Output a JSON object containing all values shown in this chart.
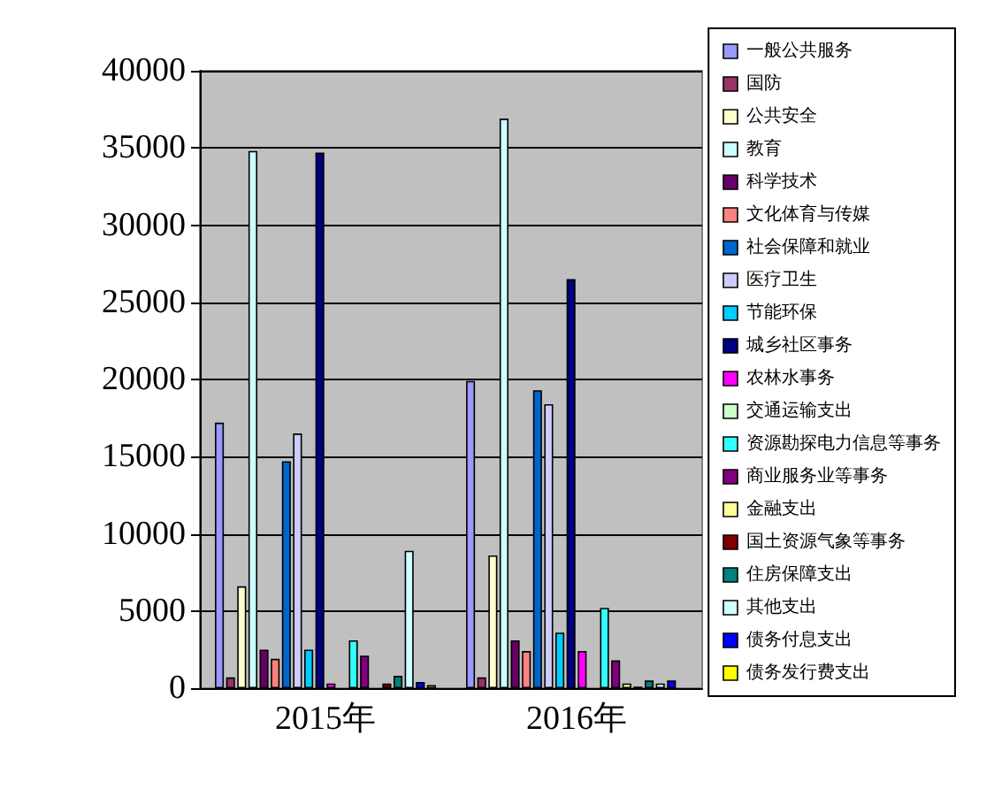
{
  "chart_data": {
    "type": "bar",
    "categories": [
      "2015年",
      "2016年"
    ],
    "series": [
      {
        "name": "一般公共服务",
        "color": "#9999ff",
        "values": [
          17200,
          19900
        ]
      },
      {
        "name": "国防",
        "color": "#993366",
        "values": [
          700,
          700
        ]
      },
      {
        "name": "公共安全",
        "color": "#ffffcc",
        "values": [
          6600,
          8600
        ]
      },
      {
        "name": "教育",
        "color": "#ccffff",
        "values": [
          34800,
          36900
        ]
      },
      {
        "name": "科学技术",
        "color": "#660066",
        "values": [
          2500,
          3100
        ]
      },
      {
        "name": "文化体育与传媒",
        "color": "#ff8080",
        "values": [
          1900,
          2400
        ]
      },
      {
        "name": "社会保障和就业",
        "color": "#0066cc",
        "values": [
          14700,
          19300
        ]
      },
      {
        "name": "医疗卫生",
        "color": "#ccccff",
        "values": [
          16500,
          18400
        ]
      },
      {
        "name": "节能环保",
        "color": "#00ccff",
        "values": [
          2500,
          3600
        ]
      },
      {
        "name": "城乡社区事务",
        "color": "#000080",
        "values": [
          34700,
          26500
        ]
      },
      {
        "name": "农林水事务",
        "color": "#ff00ff",
        "values": [
          300,
          2400
        ]
      },
      {
        "name": "交通运输支出",
        "color": "#ccffcc",
        "values": [
          null,
          null
        ]
      },
      {
        "name": "资源勘探电力信息等事务",
        "color": "#33ffff",
        "values": [
          3100,
          5200
        ]
      },
      {
        "name": "商业服务业等事务",
        "color": "#800080",
        "values": [
          2100,
          1800
        ]
      },
      {
        "name": "金融支出",
        "color": "#ffff99",
        "values": [
          null,
          300
        ]
      },
      {
        "name": "国土资源气象等事务",
        "color": "#800000",
        "values": [
          300,
          100
        ]
      },
      {
        "name": "住房保障支出",
        "color": "#008080",
        "values": [
          800,
          500
        ]
      },
      {
        "name": "其他支出",
        "color": "#ccffff",
        "values": [
          8900,
          300
        ]
      },
      {
        "name": "债务付息支出",
        "color": "#0000ff",
        "values": [
          400,
          500
        ]
      },
      {
        "name": "债务发行费支出",
        "color": "#ffff00",
        "values": [
          200,
          null
        ]
      }
    ],
    "ylim": [
      0,
      40000
    ],
    "yticks": [
      0,
      5000,
      10000,
      15000,
      20000,
      25000,
      30000,
      35000,
      40000
    ],
    "grid": "y",
    "legend": "right"
  }
}
